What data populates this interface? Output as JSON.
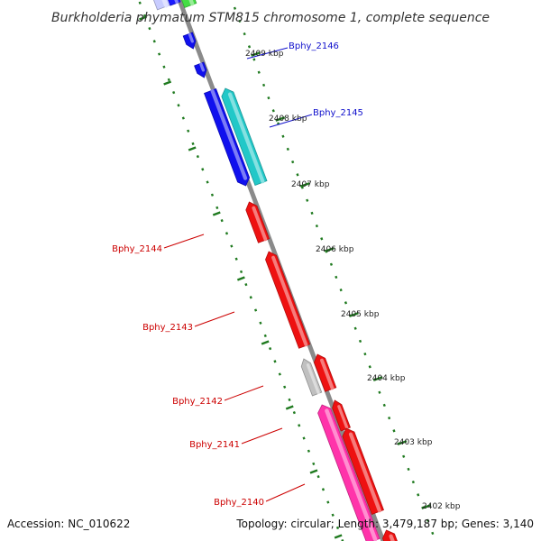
{
  "title": "Burkholderia phymatum STM815 chromosome 1, complete sequence",
  "footer": {
    "accession": "Accession: NC_010622",
    "topology": "Topology: circular; Length: 3,479,187 bp; Genes: 3,140"
  },
  "colors": {
    "backbone": "#8a8a8a",
    "tick": "#1f7a1f",
    "label_blue": "#1010cc",
    "label_red": "#cc0000"
  },
  "kbp_markers": [
    {
      "text": "2409 kbp"
    },
    {
      "text": "2408 kbp"
    },
    {
      "text": "2407 kbp"
    },
    {
      "text": "2406 kbp"
    },
    {
      "text": "2405 kbp"
    },
    {
      "text": "2404 kbp"
    },
    {
      "text": "2403 kbp"
    },
    {
      "text": "2402 kbp"
    }
  ],
  "gene_labels": [
    {
      "text": "Bphy_2146",
      "color": "#1010cc"
    },
    {
      "text": "Bphy_2145",
      "color": "#1010cc"
    },
    {
      "text": "Bphy_2144",
      "color": "#cc0000"
    },
    {
      "text": "Bphy_2143",
      "color": "#cc0000"
    },
    {
      "text": "Bphy_2142",
      "color": "#cc0000"
    },
    {
      "text": "Bphy_2141",
      "color": "#cc0000"
    },
    {
      "text": "Bphy_2140",
      "color": "#cc0000"
    }
  ],
  "genes": [
    {
      "name": "gene-partial-top-lavender",
      "color": "#c8ccff"
    },
    {
      "name": "gene-partial-top-blue",
      "color": "#1a1aff"
    },
    {
      "name": "gene-partial-top-green",
      "color": "#44dd44"
    },
    {
      "name": "gene-small-blue-a",
      "color": "#1010ee"
    },
    {
      "name": "gene-small-blue-b",
      "color": "#1010ee"
    },
    {
      "name": "gene-bphy-2146",
      "color": "#1010ee"
    },
    {
      "name": "gene-bphy-2145",
      "color": "#22c8c8"
    },
    {
      "name": "gene-bphy-2144",
      "color": "#ee1111"
    },
    {
      "name": "gene-bphy-2143",
      "color": "#ee1111"
    },
    {
      "name": "gene-bphy-2142",
      "color": "#c0c0c0"
    },
    {
      "name": "gene-red-mid",
      "color": "#ee1111"
    },
    {
      "name": "gene-red-lower",
      "color": "#ee1111"
    },
    {
      "name": "gene-bphy-2141",
      "color": "#ff33aa"
    },
    {
      "name": "gene-bphy-2140",
      "color": "#ee1111"
    },
    {
      "name": "gene-partial-bottom",
      "color": "#ee1111"
    }
  ]
}
